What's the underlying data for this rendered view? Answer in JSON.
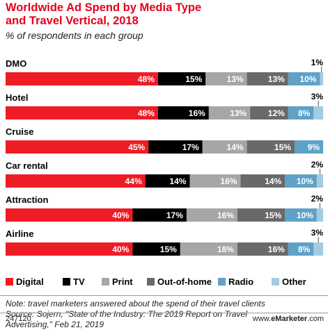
{
  "header": {
    "title": "Worldwide Ad Spend by Media Type and Travel Vertical, 2018",
    "subtitle": "% of respondents in each group"
  },
  "chart_data": {
    "type": "bar",
    "orientation": "horizontal",
    "stacked": true,
    "categories": [
      "DMO",
      "Hotel",
      "Cruise",
      "Car rental",
      "Attraction",
      "Airline"
    ],
    "series": [
      {
        "name": "Digital",
        "color": "#ee1c25",
        "values": [
          48,
          48,
          45,
          44,
          40,
          40
        ]
      },
      {
        "name": "TV",
        "color": "#000000",
        "values": [
          15,
          16,
          17,
          14,
          17,
          15
        ]
      },
      {
        "name": "Print",
        "color": "#a6a6a6",
        "values": [
          13,
          13,
          14,
          16,
          16,
          18
        ]
      },
      {
        "name": "Out-of-home",
        "color": "#696969",
        "values": [
          13,
          12,
          15,
          14,
          15,
          16
        ]
      },
      {
        "name": "Radio",
        "color": "#5fa1c7",
        "values": [
          10,
          8,
          9,
          10,
          10,
          8
        ]
      },
      {
        "name": "Other",
        "color": "#a2cde0",
        "values": [
          1,
          3,
          0,
          2,
          2,
          3
        ]
      }
    ],
    "value_suffix": "%",
    "legend_position": "bottom",
    "grid": false
  },
  "footnote": {
    "line1": "Note: travel marketers answered about the spend of their travel clients",
    "line2": "Source: Sojern, \"State of the Industry: The 2019 Report on Travel",
    "line3": "Advertising,\" Feb 21, 2019"
  },
  "footer": {
    "chart_id": "247120",
    "brand_prefix": "www.",
    "brand_name": "eMarketer",
    "brand_suffix": ".com"
  }
}
